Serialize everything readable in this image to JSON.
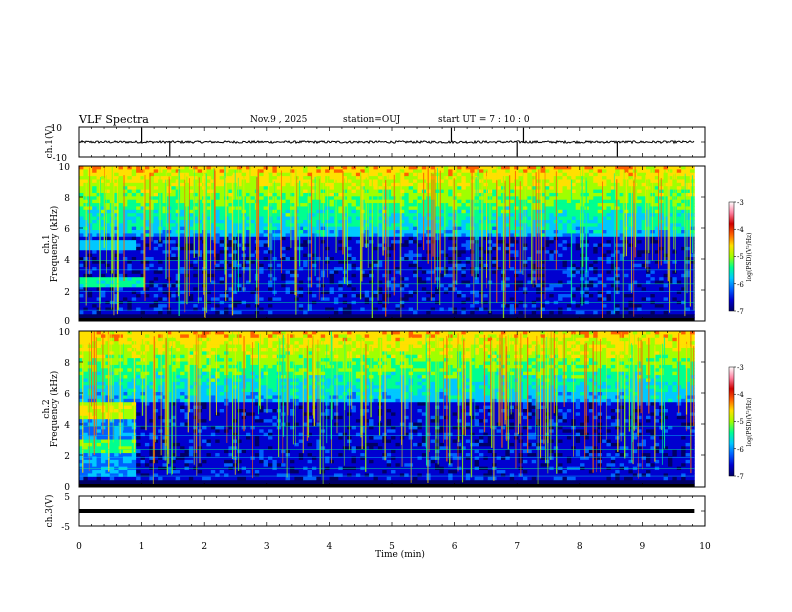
{
  "header": {
    "title": "VLF Spectra",
    "date": "Nov.9 , 2025",
    "station": "station=OUJ",
    "start": "start UT = 7 : 10 : 0"
  },
  "chart_data": [
    {
      "type": "line",
      "id": "ch1-waveform",
      "ylabel": "ch.1(V)",
      "ylim": [
        -10,
        10
      ],
      "yticks": [
        "10",
        "-10"
      ],
      "xlim": [
        0,
        10
      ],
      "baseline": 0,
      "description_spikes_min": [
        1.0,
        1.45,
        5.95,
        7.0,
        7.1,
        8.6
      ]
    },
    {
      "type": "heatmap",
      "id": "ch1-spectrogram",
      "ylabel_top": "ch.1",
      "ylabel": "Frequency (kHz)",
      "ylim": [
        0,
        10
      ],
      "yticks": [
        "0",
        "2",
        "4",
        "6",
        "8",
        "10"
      ],
      "xlim": [
        0,
        10
      ],
      "data_end_min": 9.83,
      "colorbar": {
        "label": "log(PSD)(V²/Hz)",
        "range": [
          -7,
          -3
        ],
        "ticks": [
          "-3",
          "-4",
          "-5",
          "-6",
          "-7"
        ]
      }
    },
    {
      "type": "heatmap",
      "id": "ch2-spectrogram",
      "ylabel_top": "ch.2",
      "ylabel": "Frequency (kHz)",
      "ylim": [
        0,
        10
      ],
      "yticks": [
        "0",
        "2",
        "4",
        "6",
        "8",
        "10"
      ],
      "xlim": [
        0,
        10
      ],
      "data_end_min": 9.83,
      "colorbar": {
        "label": "log(PSD)(V²/Hz)",
        "range": [
          -7,
          -3
        ],
        "ticks": [
          "-3",
          "-4",
          "-5",
          "-6",
          "-7"
        ]
      }
    },
    {
      "type": "line",
      "id": "ch3-waveform",
      "ylabel": "ch.3(V)",
      "ylim": [
        -5,
        5
      ],
      "yticks": [
        "5",
        "-5"
      ],
      "xlim": [
        0,
        10
      ],
      "baseline": 0,
      "xlabel": "Time (min)",
      "xticks": [
        "0",
        "1",
        "2",
        "3",
        "4",
        "5",
        "6",
        "7",
        "8",
        "9",
        "10"
      ]
    }
  ],
  "colors": {
    "colormap": [
      "#000066",
      "#0000d0",
      "#0060ff",
      "#00c8ff",
      "#00ff90",
      "#a0ff00",
      "#ffe000",
      "#ff6000",
      "#d00000",
      "#ff80a0",
      "#ffffff"
    ]
  }
}
